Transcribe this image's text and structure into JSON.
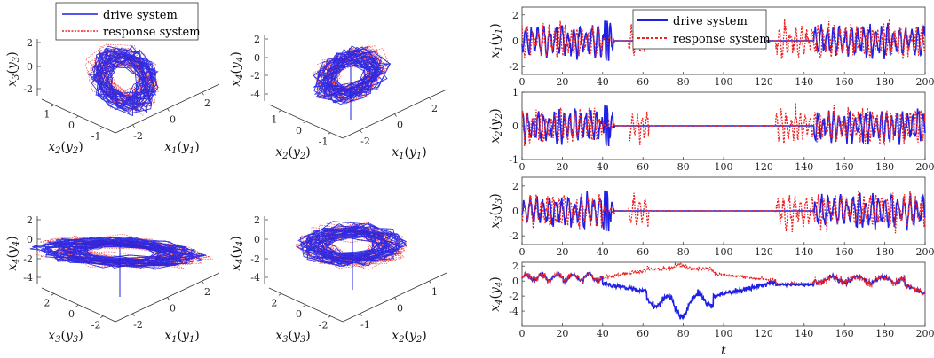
{
  "legend": {
    "drive": "drive system",
    "response": "response system"
  },
  "colors": {
    "drive": "#1f1fe6",
    "response": "#ee2222"
  },
  "chart_data": [
    {
      "type": "line",
      "id": "ts-x1",
      "ylabel_main": "x",
      "ylabel_sub": "1",
      "ylabel_arg": "y",
      "ylabel_arg_sub": "1",
      "xlim": [
        0,
        200
      ],
      "ylim": [
        -2.6,
        2.6
      ],
      "yticks": [
        "2",
        "0",
        "-2"
      ],
      "ytick_values": [
        2,
        0,
        -2
      ],
      "xticks": [
        "0",
        "20",
        "40",
        "60",
        "80",
        "100",
        "120",
        "140",
        "160",
        "180",
        "200"
      ],
      "series": [
        {
          "name": "drive system"
        },
        {
          "name": "response system"
        }
      ]
    },
    {
      "type": "line",
      "id": "ts-x2",
      "ylabel_main": "x",
      "ylabel_sub": "2",
      "ylabel_arg": "y",
      "ylabel_arg_sub": "2",
      "xlim": [
        0,
        200
      ],
      "ylim": [
        -1,
        1
      ],
      "yticks": [
        "1",
        "0",
        "-1"
      ],
      "ytick_values": [
        1,
        0,
        -1
      ],
      "xticks": [
        "0",
        "20",
        "40",
        "60",
        "80",
        "100",
        "120",
        "140",
        "160",
        "180",
        "200"
      ],
      "series": [
        {
          "name": "drive system"
        },
        {
          "name": "response system"
        }
      ]
    },
    {
      "type": "line",
      "id": "ts-x3",
      "ylabel_main": "x",
      "ylabel_sub": "3",
      "ylabel_arg": "y",
      "ylabel_arg_sub": "3",
      "xlim": [
        0,
        200
      ],
      "ylim": [
        -2.7,
        2.7
      ],
      "yticks": [
        "2",
        "0",
        "-2"
      ],
      "ytick_values": [
        2,
        0,
        -2
      ],
      "xticks": [
        "0",
        "20",
        "40",
        "60",
        "80",
        "100",
        "120",
        "140",
        "160",
        "180",
        "200"
      ],
      "series": [
        {
          "name": "drive system"
        },
        {
          "name": "response system"
        }
      ]
    },
    {
      "type": "line",
      "id": "ts-x4",
      "ylabel_main": "x",
      "ylabel_sub": "4",
      "ylabel_arg": "y",
      "ylabel_arg_sub": "4",
      "xlim": [
        0,
        200
      ],
      "ylim": [
        -6,
        2.5
      ],
      "yticks": [
        "2",
        "0",
        "-2",
        "-4"
      ],
      "ytick_values": [
        2,
        0,
        -2,
        -4
      ],
      "xticks": [
        "0",
        "20",
        "40",
        "60",
        "80",
        "100",
        "120",
        "140",
        "160",
        "180",
        "200"
      ],
      "xlabel": "t",
      "series": [
        {
          "name": "drive system"
        },
        {
          "name": "response system"
        }
      ]
    },
    {
      "type": "scatter",
      "id": "3d-x1x2x3",
      "ticks_vert": [
        "2",
        "0",
        "-2"
      ],
      "ticks_front": [
        "2",
        "0",
        "-2"
      ],
      "ticks_side": [
        "1",
        "0",
        "-1"
      ],
      "zlabel_main": "x",
      "zlabel_sub": "3",
      "zlabel_arg_sub": "3",
      "flabel_main": "x",
      "flabel_sub": "1",
      "flabel_arg_sub": "1",
      "slabel_main": "x",
      "slabel_sub": "2",
      "slabel_arg_sub": "2"
    },
    {
      "type": "scatter",
      "id": "3d-x1x2x4",
      "ticks_vert": [
        "2",
        "0",
        "-2",
        "-4"
      ],
      "ticks_front": [
        "2",
        "0",
        "-2"
      ],
      "ticks_side": [
        "1",
        "0",
        "-1"
      ],
      "zlabel_main": "x",
      "zlabel_sub": "4",
      "zlabel_arg_sub": "4",
      "flabel_main": "x",
      "flabel_sub": "1",
      "flabel_arg_sub": "1",
      "slabel_main": "x",
      "slabel_sub": "2",
      "slabel_arg_sub": "2"
    },
    {
      "type": "scatter",
      "id": "3d-x1x3x4",
      "ticks_vert": [
        "2",
        "0",
        "-2",
        "-4"
      ],
      "ticks_front": [
        "2",
        "0",
        "-2"
      ],
      "ticks_side": [
        "2",
        "0",
        "-2"
      ],
      "zlabel_main": "x",
      "zlabel_sub": "4",
      "zlabel_arg_sub": "4",
      "flabel_main": "x",
      "flabel_sub": "1",
      "flabel_arg_sub": "1",
      "slabel_main": "x",
      "slabel_sub": "3",
      "slabel_arg_sub": "3"
    },
    {
      "type": "scatter",
      "id": "3d-x2x3x4",
      "ticks_vert": [
        "2",
        "0",
        "-2",
        "-4"
      ],
      "ticks_front": [
        "1",
        "0",
        "-1"
      ],
      "ticks_side": [
        "2",
        "0",
        "-2"
      ],
      "zlabel_main": "x",
      "zlabel_sub": "4",
      "zlabel_arg_sub": "4",
      "flabel_main": "x",
      "flabel_sub": "2",
      "flabel_arg_sub": "2",
      "slabel_main": "x",
      "slabel_sub": "3",
      "slabel_arg_sub": "3"
    }
  ]
}
